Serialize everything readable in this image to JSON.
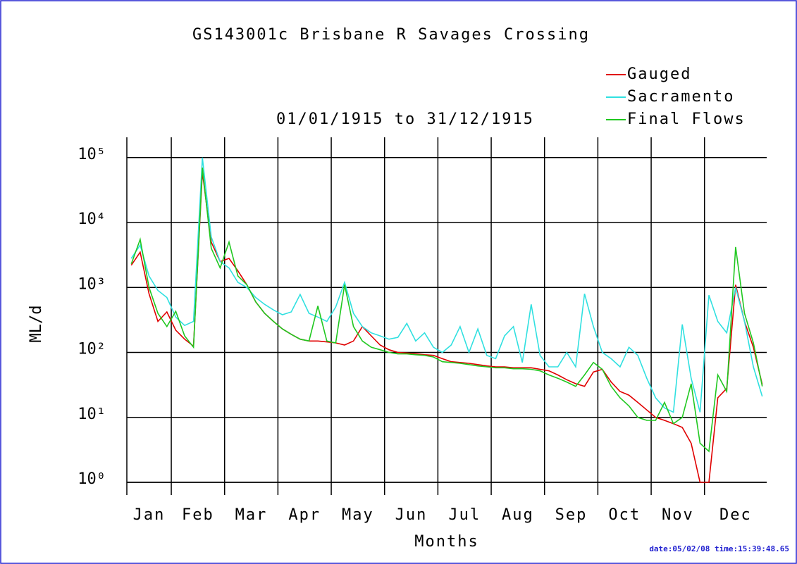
{
  "chart_data": {
    "type": "line",
    "title": "GS143001c Brisbane R Savages Crossing",
    "subtitle": "01/01/1915 to 31/12/1915",
    "x_label": "Months",
    "y_label": "ML/d",
    "footnote": "date:05/02/08 time:15:39:48.65",
    "log_scale": true,
    "grid": true,
    "legend": "top-right",
    "categories": [
      null,
      null,
      "Jan",
      null,
      null,
      null,
      null,
      null,
      "Feb",
      null,
      null,
      null,
      null,
      null,
      "Mar",
      null,
      null,
      null,
      null,
      null,
      "Apr",
      null,
      null,
      null,
      null,
      null,
      "May",
      null,
      null,
      null,
      null,
      null,
      "Jun",
      null,
      null,
      null,
      null,
      null,
      "Jul",
      null,
      null,
      null,
      null,
      null,
      "Aug",
      null,
      null,
      null,
      null,
      null,
      "Sep",
      null,
      null,
      null,
      null,
      null,
      "Oct",
      null,
      null,
      null,
      null,
      null,
      "Nov",
      null,
      null,
      null,
      null,
      null,
      "Dec",
      null,
      null,
      null
    ],
    "ylim": [
      1,
      205000
    ],
    "yticks": [
      {
        "value": 1,
        "label": "10⁰"
      },
      {
        "value": 10,
        "label": "10¹"
      },
      {
        "value": 100,
        "label": "10²"
      },
      {
        "value": 1000,
        "label": "10³"
      },
      {
        "value": 10000,
        "label": "10⁴"
      },
      {
        "value": 100000,
        "label": "10⁵"
      }
    ],
    "series": [
      {
        "name": "Gauged",
        "color": "#e00000",
        "values": [
          2200,
          3500,
          800,
          300,
          420,
          220,
          160,
          125,
          60000,
          5000,
          2500,
          2800,
          1800,
          1100,
          600,
          400,
          300,
          230,
          190,
          160,
          150,
          150,
          145,
          140,
          130,
          150,
          250,
          180,
          130,
          110,
          100,
          98,
          95,
          92,
          90,
          80,
          72,
          70,
          68,
          65,
          62,
          60,
          60,
          58,
          58,
          58,
          55,
          52,
          45,
          38,
          33,
          30,
          50,
          55,
          35,
          25,
          22,
          17,
          13,
          10,
          9,
          8,
          7,
          4,
          1,
          1,
          20,
          28,
          1100,
          300,
          120,
          32
        ]
      },
      {
        "name": "Sacramento",
        "color": "#30e0e0",
        "values": [
          2800,
          4500,
          1500,
          900,
          700,
          350,
          260,
          300,
          100000,
          6000,
          2500,
          2000,
          1200,
          1000,
          700,
          550,
          450,
          380,
          420,
          780,
          400,
          350,
          300,
          500,
          1200,
          400,
          250,
          200,
          180,
          160,
          170,
          280,
          150,
          200,
          120,
          100,
          130,
          250,
          100,
          230,
          90,
          80,
          180,
          250,
          70,
          550,
          90,
          60,
          60,
          100,
          60,
          800,
          250,
          100,
          80,
          60,
          120,
          90,
          40,
          20,
          14,
          12,
          270,
          40,
          12,
          760,
          300,
          200,
          1000,
          300,
          60,
          21
        ]
      },
      {
        "name": "Final Flows",
        "color": "#20c820",
        "values": [
          2300,
          5500,
          1000,
          400,
          250,
          430,
          180,
          120,
          70000,
          4000,
          2000,
          5000,
          1500,
          1100,
          600,
          400,
          300,
          230,
          190,
          160,
          150,
          520,
          150,
          140,
          1100,
          250,
          150,
          120,
          110,
          100,
          95,
          95,
          92,
          90,
          85,
          72,
          70,
          68,
          65,
          62,
          60,
          58,
          58,
          56,
          56,
          55,
          52,
          45,
          40,
          35,
          30,
          45,
          70,
          55,
          30,
          20,
          15,
          10,
          9,
          9,
          17,
          8,
          10,
          33,
          4,
          3,
          45,
          25,
          4200,
          400,
          140,
          30
        ]
      }
    ]
  }
}
